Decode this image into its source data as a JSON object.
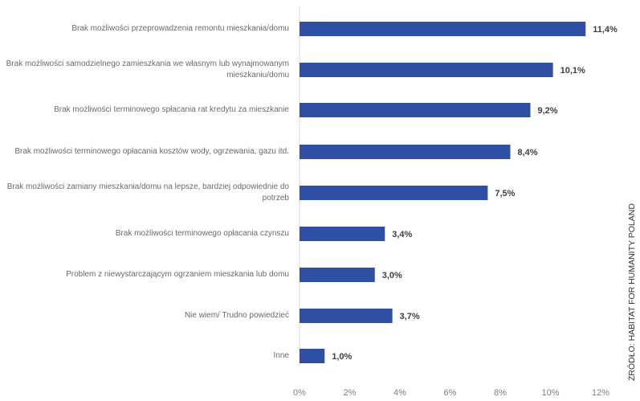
{
  "source_note": "ŹRÓDŁO: HABITAT FOR HUMANITY POLAND",
  "chart_data": {
    "type": "bar",
    "orientation": "horizontal",
    "title": "",
    "xlabel": "",
    "ylabel": "",
    "xlim": [
      0,
      12
    ],
    "tick_values": [
      0,
      2,
      4,
      6,
      8,
      10,
      12
    ],
    "tick_labels": [
      "0%",
      "2%",
      "4%",
      "6%",
      "8%",
      "10%",
      "12%"
    ],
    "grid": false,
    "legend": "none",
    "bar_color": "#2e4fa3",
    "categories": [
      "Brak możliwości przeprowadzenia remontu mieszkania/domu",
      "Brak możliwości samodzielnego zamieszkania we własnym lub wynajmowanym mieszkaniu/domu",
      "Brak możliwości terminowego spłacania rat kredytu za mieszkanie",
      "Brak możliwości terminowego opłacania kosztów wody, ogrzewania, gazu itd.",
      "Brak możliwości zamiany mieszkania/domu  na lepsze, bardziej odpowiednie do potrzeb",
      "Brak możliwości terminowego opłacania czynszu",
      "Problem z niewystarczającym ogrzaniem mieszkania lub domu",
      "Nie wiem/ Trudno powiedzieć",
      "Inne"
    ],
    "values": [
      11.4,
      10.1,
      9.2,
      8.4,
      7.5,
      3.4,
      3.0,
      3.7,
      1.0
    ],
    "value_labels": [
      "11,4%",
      "10,1%",
      "9,2%",
      "8,4%",
      "7,5%",
      "3,4%",
      "3,0%",
      "3,7%",
      "1,0%"
    ]
  }
}
